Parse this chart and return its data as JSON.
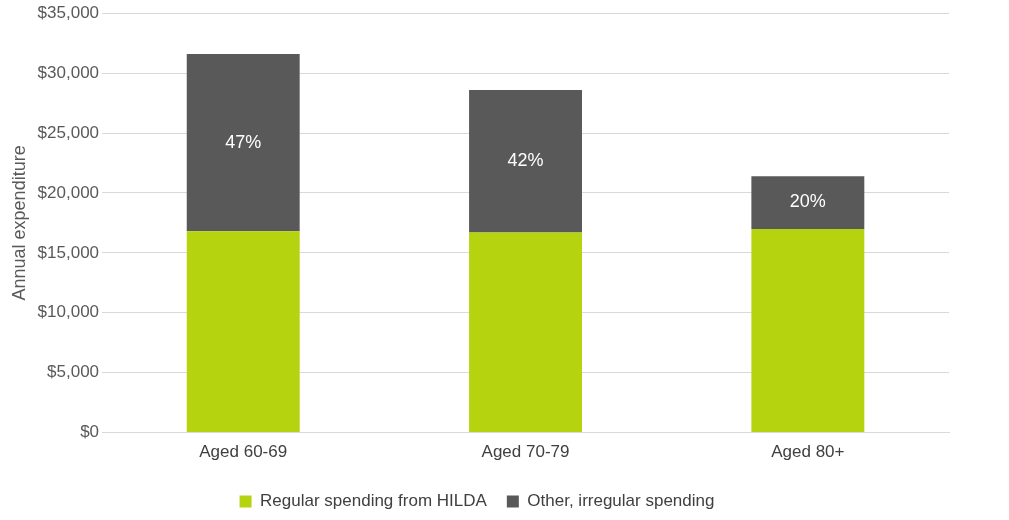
{
  "chart_data": {
    "type": "bar",
    "stacked": true,
    "ylabel": "Annual expenditure",
    "categories": [
      "Aged 60-69",
      "Aged 70-79",
      "Aged 80+"
    ],
    "series": [
      {
        "name": "Regular spending from HILDA",
        "color": "#b5d30f",
        "values": [
          16800,
          16700,
          17000
        ]
      },
      {
        "name": "Other, irregular spending",
        "color": "#595959",
        "values": [
          14800,
          11900,
          4400
        ]
      }
    ],
    "annotations": [
      "47%",
      "42%",
      "20%"
    ],
    "ylim": [
      0,
      35000
    ],
    "yticks": [
      {
        "value": 0,
        "label": "$0"
      },
      {
        "value": 5000,
        "label": "$5,000"
      },
      {
        "value": 10000,
        "label": "$10,000"
      },
      {
        "value": 15000,
        "label": "$15,000"
      },
      {
        "value": 20000,
        "label": "$20,000"
      },
      {
        "value": 25000,
        "label": "$25,000"
      },
      {
        "value": 30000,
        "label": "$30,000"
      },
      {
        "value": 35000,
        "label": "$35,000"
      }
    ],
    "grid": "y",
    "legend": "bottom"
  }
}
